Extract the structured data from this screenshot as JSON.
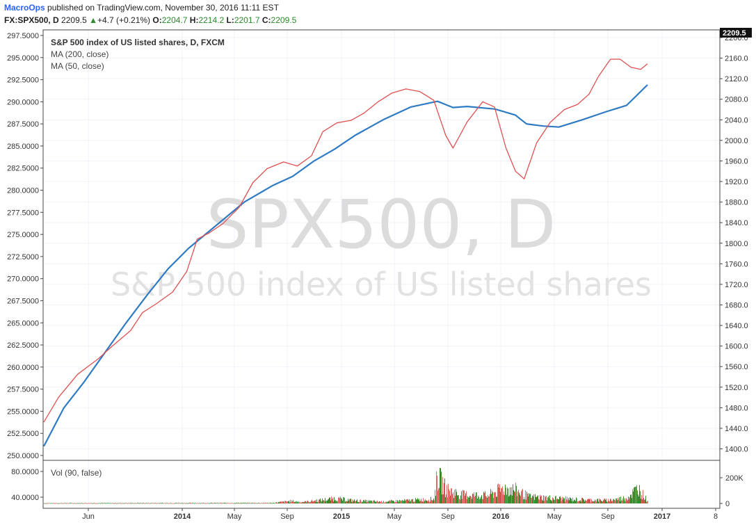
{
  "header": {
    "author": "MacroOps",
    "published": " published on TradingView.com, November 30, 2016 11:11 EST",
    "symbol": "FX:SPX500, D",
    "price": "2209.5",
    "change": "+4.7 (+0.21%)",
    "open_label": "O:",
    "open": "2204.7",
    "high_label": "H:",
    "high": "2214.2",
    "low_label": "L:",
    "low": "2201.7",
    "close_label": "C:",
    "close": "2209.5"
  },
  "legend": {
    "title": "S&P 500 index of US listed shares, D, FXCM",
    "ma200": "MA (200, close)",
    "ma50": "MA (50, close)"
  },
  "watermark": {
    "symbol": "SPX500, D",
    "description": "S&P 500 index of US listed shares"
  },
  "volume_panel": {
    "label": "Vol (90, false)"
  },
  "last_price_tag": "2209.5",
  "colors": {
    "ma200": "#2e7bc4",
    "ma50": "#e05050",
    "vol_up": "#3a8a2a",
    "vol_down": "#e06a6a",
    "grid": "#f0f3fa"
  },
  "chart_data": [
    {
      "type": "line",
      "title": "S&P 500 index of US listed shares, D, FXCM",
      "x_tick_labels": [
        "Jun",
        "2014",
        "May",
        "Sep",
        "2015",
        "May",
        "Sep",
        "2016",
        "May",
        "Sep",
        "2017",
        "8"
      ],
      "left_axis_ticks": [
        "297.5000",
        "295.0000",
        "292.5000",
        "290.0000",
        "287.5000",
        "285.0000",
        "282.5000",
        "280.0000",
        "277.5000",
        "275.0000",
        "272.5000",
        "270.0000",
        "267.5000",
        "265.0000",
        "262.5000",
        "260.0000",
        "257.5000",
        "255.0000",
        "252.5000",
        "250.0000"
      ],
      "right_axis_ticks": [
        "2200.0",
        "2160.0",
        "2120.0",
        "2080.0",
        "2040.0",
        "2000.0",
        "1960.0",
        "1920.0",
        "1880.0",
        "1840.0",
        "1800.0",
        "1760.0",
        "1720.0",
        "1680.0",
        "1640.0",
        "1600.0",
        "1560.0",
        "1520.0",
        "1480.0",
        "1440.0",
        "1400.0"
      ],
      "ylim": [
        1380,
        2215
      ],
      "series": [
        {
          "name": "MA (200, close)",
          "points": [
            [
              "2013-04-18",
              1405
            ],
            [
              "2013-06-01",
              1480
            ],
            [
              "2013-07-15",
              1530
            ],
            [
              "2013-09-01",
              1590
            ],
            [
              "2013-10-15",
              1645
            ],
            [
              "2013-12-01",
              1700
            ],
            [
              "2014-01-15",
              1750
            ],
            [
              "2014-03-01",
              1790
            ],
            [
              "2014-05-01",
              1835
            ],
            [
              "2014-07-01",
              1880
            ],
            [
              "2014-09-01",
              1912
            ],
            [
              "2014-10-15",
              1930
            ],
            [
              "2014-12-01",
              1960
            ],
            [
              "2015-01-15",
              1983
            ],
            [
              "2015-03-01",
              2010
            ],
            [
              "2015-05-01",
              2040
            ],
            [
              "2015-07-01",
              2065
            ],
            [
              "2015-08-28",
              2076
            ],
            [
              "2015-10-01",
              2064
            ],
            [
              "2015-11-01",
              2066
            ],
            [
              "2016-01-01",
              2061
            ],
            [
              "2016-02-15",
              2049
            ],
            [
              "2016-03-10",
              2032
            ],
            [
              "2016-04-15",
              2028
            ],
            [
              "2016-05-20",
              2026
            ],
            [
              "2016-07-10",
              2040
            ],
            [
              "2016-09-01",
              2056
            ],
            [
              "2016-10-15",
              2068
            ],
            [
              "2016-11-30",
              2108
            ]
          ]
        },
        {
          "name": "MA (50, close)",
          "points": [
            [
              "2013-04-18",
              1452
            ],
            [
              "2013-05-20",
              1500
            ],
            [
              "2013-07-01",
              1545
            ],
            [
              "2013-08-15",
              1575
            ],
            [
              "2013-09-15",
              1600
            ],
            [
              "2013-10-25",
              1630
            ],
            [
              "2013-11-20",
              1665
            ],
            [
              "2013-12-20",
              1682
            ],
            [
              "2014-01-25",
              1705
            ],
            [
              "2014-02-25",
              1745
            ],
            [
              "2014-03-20",
              1808
            ],
            [
              "2014-04-15",
              1820
            ],
            [
              "2014-05-15",
              1838
            ],
            [
              "2014-06-20",
              1870
            ],
            [
              "2014-07-20",
              1918
            ],
            [
              "2014-08-20",
              1945
            ],
            [
              "2014-09-25",
              1958
            ],
            [
              "2014-10-25",
              1950
            ],
            [
              "2014-11-25",
              1970
            ],
            [
              "2014-12-20",
              2017
            ],
            [
              "2015-01-20",
              2034
            ],
            [
              "2015-02-20",
              2039
            ],
            [
              "2015-03-20",
              2053
            ],
            [
              "2015-04-20",
              2075
            ],
            [
              "2015-05-20",
              2092
            ],
            [
              "2015-06-20",
              2100
            ],
            [
              "2015-07-20",
              2095
            ],
            [
              "2015-08-20",
              2078
            ],
            [
              "2015-09-15",
              2010
            ],
            [
              "2015-10-01",
              1985
            ],
            [
              "2015-11-01",
              2036
            ],
            [
              "2015-12-05",
              2075
            ],
            [
              "2015-12-31",
              2065
            ],
            [
              "2016-01-25",
              1985
            ],
            [
              "2016-02-15",
              1940
            ],
            [
              "2016-03-05",
              1925
            ],
            [
              "2016-04-01",
              1995
            ],
            [
              "2016-05-01",
              2035
            ],
            [
              "2016-06-01",
              2060
            ],
            [
              "2016-06-30",
              2070
            ],
            [
              "2016-07-25",
              2090
            ],
            [
              "2016-08-15",
              2125
            ],
            [
              "2016-09-10",
              2158
            ],
            [
              "2016-10-01",
              2158
            ],
            [
              "2016-10-25",
              2142
            ],
            [
              "2016-11-15",
              2138
            ],
            [
              "2016-11-30",
              2149
            ]
          ]
        }
      ]
    },
    {
      "type": "bar",
      "title": "Vol (90, false)",
      "ylim": [
        0,
        290000
      ],
      "left_axis_ticks": [
        "80.0000",
        "40.0000"
      ],
      "right_axis_ticks": [
        "200K",
        "0"
      ],
      "volume_profile": [
        [
          "2013-04-18",
          3000
        ],
        [
          "2014-09-01",
          5000
        ],
        [
          "2014-10-10",
          22000
        ],
        [
          "2014-11-01",
          12000
        ],
        [
          "2014-12-15",
          30000
        ],
        [
          "2015-01-15",
          45000
        ],
        [
          "2015-03-01",
          25000
        ],
        [
          "2015-05-01",
          16000
        ],
        [
          "2015-08-20",
          40000
        ],
        [
          "2015-08-27",
          250000
        ],
        [
          "2015-09-15",
          130000
        ],
        [
          "2015-10-15",
          80000
        ],
        [
          "2015-12-15",
          70000
        ],
        [
          "2016-01-20",
          140000
        ],
        [
          "2016-02-15",
          120000
        ],
        [
          "2016-03-15",
          60000
        ],
        [
          "2016-05-01",
          50000
        ],
        [
          "2016-07-01",
          35000
        ],
        [
          "2016-09-01",
          28000
        ],
        [
          "2016-10-15",
          50000
        ],
        [
          "2016-11-09",
          140000
        ],
        [
          "2016-11-30",
          20000
        ]
      ]
    }
  ]
}
